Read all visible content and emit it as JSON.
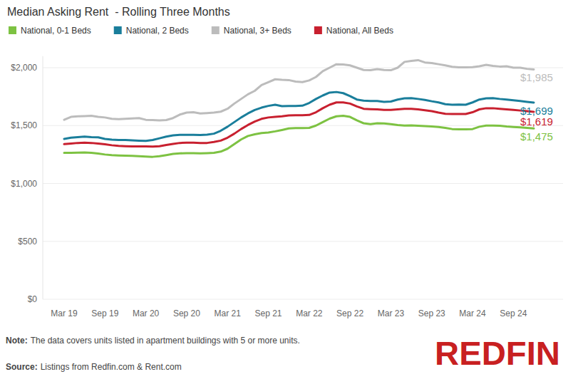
{
  "chart_data": {
    "type": "line",
    "title": "Median Asking Rent  - Rolling Three Months",
    "categories": [
      "Mar 19",
      null,
      null,
      null,
      null,
      null,
      "Sep 19",
      null,
      null,
      null,
      null,
      null,
      "Mar 20",
      null,
      null,
      null,
      null,
      null,
      "Sep 20",
      null,
      null,
      null,
      null,
      null,
      "Mar 21",
      null,
      null,
      null,
      null,
      null,
      "Sep 21",
      null,
      null,
      null,
      null,
      null,
      "Mar 22",
      null,
      null,
      null,
      null,
      null,
      "Sep 22",
      null,
      null,
      null,
      null,
      null,
      "Mar 23",
      null,
      null,
      null,
      null,
      null,
      "Sep 23",
      null,
      null,
      null,
      null,
      null,
      "Mar 24",
      null,
      null,
      null,
      null,
      null,
      "Sep 24",
      null,
      null,
      null
    ],
    "series": [
      {
        "name": "National, 0-1 Beds",
        "color": "#7dc242",
        "values": [
          1265,
          1265,
          1266,
          1268,
          1265,
          1258,
          1250,
          1245,
          1242,
          1240,
          1238,
          1235,
          1232,
          1230,
          1235,
          1245,
          1255,
          1260,
          1262,
          1262,
          1260,
          1262,
          1265,
          1275,
          1300,
          1340,
          1380,
          1410,
          1425,
          1435,
          1440,
          1450,
          1462,
          1475,
          1478,
          1478,
          1480,
          1500,
          1530,
          1560,
          1580,
          1585,
          1575,
          1545,
          1520,
          1512,
          1520,
          1518,
          1512,
          1505,
          1500,
          1502,
          1498,
          1495,
          1492,
          1488,
          1480,
          1470,
          1468,
          1468,
          1470,
          1490,
          1500,
          1500,
          1498,
          1492,
          1488,
          1485,
          1480,
          1475
        ],
        "value_labels": [
          null,
          null,
          null,
          null,
          null,
          null,
          null,
          null,
          null,
          null,
          null,
          null,
          null,
          null,
          null,
          null,
          null,
          null,
          null,
          null,
          null,
          null,
          null,
          null,
          null,
          null,
          null,
          null,
          null,
          null,
          null,
          null,
          null,
          null,
          null,
          null,
          null,
          null,
          null,
          null,
          null,
          null,
          null,
          null,
          null,
          null,
          null,
          null,
          null,
          null,
          null,
          null,
          null,
          null,
          null,
          null,
          null,
          null,
          null,
          null,
          null,
          null,
          null,
          null,
          null,
          null,
          null,
          null,
          null,
          "$1,475"
        ]
      },
      {
        "name": "National, 2 Beds",
        "color": "#1a7e9b",
        "values": [
          1385,
          1395,
          1400,
          1405,
          1400,
          1398,
          1385,
          1378,
          1375,
          1375,
          1372,
          1370,
          1368,
          1375,
          1390,
          1405,
          1415,
          1420,
          1420,
          1420,
          1418,
          1422,
          1430,
          1455,
          1490,
          1530,
          1570,
          1605,
          1635,
          1655,
          1670,
          1680,
          1668,
          1670,
          1670,
          1672,
          1695,
          1730,
          1760,
          1785,
          1790,
          1780,
          1755,
          1725,
          1715,
          1712,
          1712,
          1705,
          1708,
          1725,
          1735,
          1737,
          1730,
          1722,
          1710,
          1700,
          1685,
          1680,
          1682,
          1680,
          1700,
          1725,
          1735,
          1737,
          1730,
          1725,
          1718,
          1712,
          1705,
          1699
        ],
        "value_labels": [
          null,
          null,
          null,
          null,
          null,
          null,
          null,
          null,
          null,
          null,
          null,
          null,
          null,
          null,
          null,
          null,
          null,
          null,
          null,
          null,
          null,
          null,
          null,
          null,
          null,
          null,
          null,
          null,
          null,
          null,
          null,
          null,
          null,
          null,
          null,
          null,
          null,
          null,
          null,
          null,
          null,
          null,
          null,
          null,
          null,
          null,
          null,
          null,
          null,
          null,
          null,
          null,
          null,
          null,
          null,
          null,
          null,
          null,
          null,
          null,
          null,
          null,
          null,
          null,
          null,
          null,
          null,
          null,
          null,
          "$1,699"
        ]
      },
      {
        "name": "National, 3+ Beds",
        "color": "#bcbcbc",
        "values": [
          1550,
          1575,
          1580,
          1582,
          1585,
          1575,
          1570,
          1558,
          1555,
          1558,
          1562,
          1565,
          1550,
          1548,
          1545,
          1548,
          1565,
          1595,
          1612,
          1615,
          1605,
          1608,
          1612,
          1620,
          1645,
          1690,
          1730,
          1770,
          1800,
          1850,
          1875,
          1900,
          1895,
          1893,
          1880,
          1875,
          1890,
          1920,
          1970,
          2000,
          2030,
          2028,
          2020,
          2000,
          1980,
          1978,
          1988,
          1980,
          1978,
          2000,
          2050,
          2058,
          2065,
          2045,
          2040,
          2030,
          2020,
          2008,
          2003,
          2003,
          2005,
          2012,
          2025,
          2015,
          2010,
          2012,
          2000,
          2000,
          1990,
          1985
        ],
        "value_labels": [
          null,
          null,
          null,
          null,
          null,
          null,
          null,
          null,
          null,
          null,
          null,
          null,
          null,
          null,
          null,
          null,
          null,
          null,
          null,
          null,
          null,
          null,
          null,
          null,
          null,
          null,
          null,
          null,
          null,
          null,
          null,
          null,
          null,
          null,
          null,
          null,
          null,
          null,
          null,
          null,
          null,
          null,
          null,
          null,
          null,
          null,
          null,
          null,
          null,
          null,
          null,
          null,
          null,
          null,
          null,
          null,
          null,
          null,
          null,
          null,
          null,
          null,
          null,
          null,
          null,
          null,
          null,
          null,
          null,
          "$1,985"
        ]
      },
      {
        "name": "National, All Beds",
        "color": "#c8202f",
        "values": [
          1340,
          1345,
          1350,
          1352,
          1350,
          1345,
          1338,
          1330,
          1325,
          1322,
          1320,
          1320,
          1320,
          1318,
          1322,
          1332,
          1342,
          1350,
          1352,
          1352,
          1350,
          1350,
          1358,
          1370,
          1395,
          1430,
          1470,
          1505,
          1535,
          1558,
          1570,
          1575,
          1580,
          1588,
          1590,
          1590,
          1592,
          1615,
          1650,
          1680,
          1700,
          1700,
          1690,
          1665,
          1645,
          1642,
          1640,
          1635,
          1635,
          1640,
          1645,
          1645,
          1640,
          1632,
          1625,
          1612,
          1602,
          1600,
          1600,
          1600,
          1615,
          1640,
          1650,
          1650,
          1645,
          1640,
          1635,
          1630,
          1625,
          1619
        ],
        "value_labels": [
          null,
          null,
          null,
          null,
          null,
          null,
          null,
          null,
          null,
          null,
          null,
          null,
          null,
          null,
          null,
          null,
          null,
          null,
          null,
          null,
          null,
          null,
          null,
          null,
          null,
          null,
          null,
          null,
          null,
          null,
          null,
          null,
          null,
          null,
          null,
          null,
          null,
          null,
          null,
          null,
          null,
          null,
          null,
          null,
          null,
          null,
          null,
          null,
          null,
          null,
          null,
          null,
          null,
          null,
          null,
          null,
          null,
          null,
          null,
          null,
          null,
          null,
          null,
          null,
          null,
          null,
          null,
          null,
          null,
          "$1,619"
        ]
      }
    ],
    "ylim": [
      0,
      2100
    ],
    "yticks": [
      {
        "value": 0,
        "label": "$0"
      },
      {
        "value": 500,
        "label": "$500"
      },
      {
        "value": 1000,
        "label": "$1,000"
      },
      {
        "value": 1500,
        "label": "$1,500"
      },
      {
        "value": 2000,
        "label": "$2,000"
      }
    ],
    "grid": true,
    "legend": "top-left",
    "data_labels": true,
    "note": {
      "label": "Note:",
      "text": "The data covers units listed in apartment buildings with 5 or more units."
    },
    "source": {
      "label": "Source:",
      "text": "Listings from Redfin.com & Rent.com"
    },
    "logo": "REDFIN"
  }
}
